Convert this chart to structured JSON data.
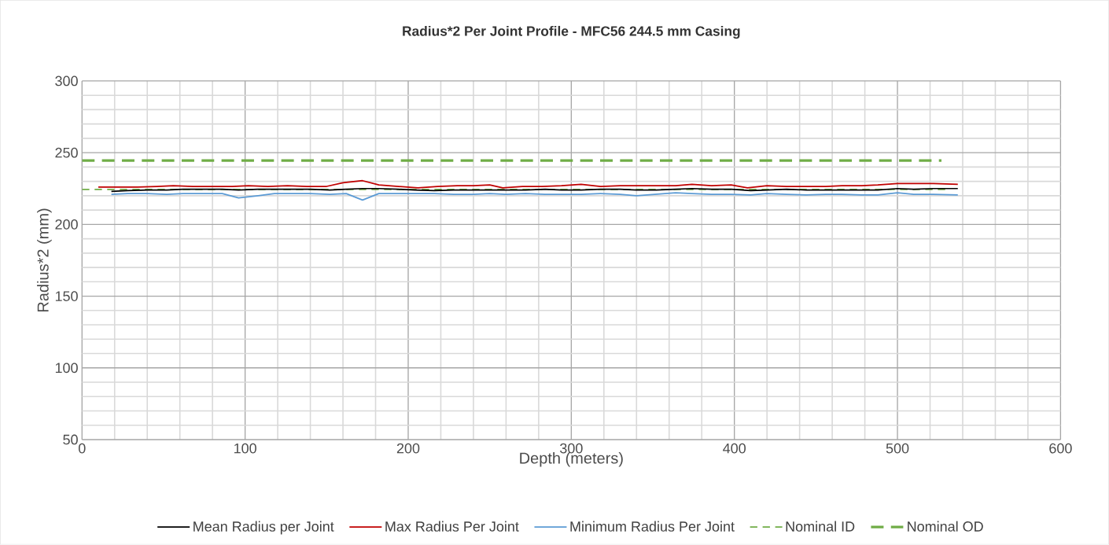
{
  "chart_data": {
    "type": "line",
    "title": "Radius*2 Per Joint Profile - MFC56 244.5 mm Casing",
    "xlabel": "Depth (meters)",
    "ylabel": "Radius*2 (mm)",
    "xlim": [
      0,
      600
    ],
    "xticks": [
      0,
      100,
      200,
      300,
      400,
      500,
      600
    ],
    "ylim": [
      50,
      300
    ],
    "yticks": [
      50,
      100,
      150,
      200,
      250,
      300
    ],
    "grid": true,
    "legend": "bottom",
    "marker": "none",
    "series": [
      {
        "name": "Mean Radius per Joint",
        "color": "#000000",
        "line_style": "solid",
        "x": [
          18,
          28,
          40,
          52,
          62,
          74,
          86,
          96,
          108,
          118,
          128,
          140,
          152,
          162,
          172,
          182,
          194,
          204,
          216,
          228,
          240,
          250,
          260,
          272,
          284,
          294,
          306,
          318,
          330,
          340,
          352,
          364,
          374,
          386,
          398,
          410,
          420,
          432,
          444,
          456,
          466,
          478,
          488,
          500,
          510,
          522,
          537
        ],
        "values": [
          223,
          223.5,
          224,
          224,
          224.5,
          224.5,
          224.5,
          224,
          224.5,
          224.5,
          224.5,
          224.5,
          224,
          224.5,
          225,
          225,
          224.5,
          224,
          223.5,
          224,
          224,
          224,
          224,
          224,
          224.5,
          224,
          224,
          224.5,
          224.5,
          224,
          224,
          224.5,
          225,
          224.5,
          224.5,
          223.5,
          224,
          224.5,
          224,
          224,
          224,
          224,
          224,
          225,
          224.5,
          225,
          225
        ]
      },
      {
        "name": "Max Radius Per Joint",
        "color": "#c00000",
        "line_style": "solid",
        "x": [
          10,
          22,
          34,
          46,
          56,
          68,
          80,
          92,
          102,
          114,
          126,
          138,
          150,
          160,
          172,
          182,
          194,
          206,
          218,
          230,
          240,
          250,
          258,
          270,
          282,
          294,
          306,
          318,
          330,
          342,
          352,
          364,
          374,
          386,
          398,
          408,
          420,
          432,
          444,
          456,
          466,
          478,
          488,
          500,
          510,
          522,
          537
        ],
        "values": [
          226,
          226,
          226,
          226.5,
          227,
          226.5,
          226.5,
          226.5,
          227,
          226.5,
          227,
          226.5,
          226.5,
          229,
          230.5,
          227.5,
          226.5,
          225.5,
          226.5,
          227,
          227,
          227.5,
          225.5,
          226.5,
          226.5,
          227,
          228,
          226.5,
          227,
          227,
          227,
          227,
          228,
          227,
          227.5,
          225.5,
          227,
          226.5,
          226.5,
          226.5,
          227,
          227,
          227.5,
          228.5,
          228.5,
          228.5,
          228
        ]
      },
      {
        "name": "Minimum Radius Per Joint",
        "color": "#5b9bd5",
        "line_style": "solid",
        "x": [
          18,
          28,
          40,
          52,
          62,
          74,
          86,
          96,
          108,
          118,
          128,
          140,
          152,
          162,
          172,
          182,
          194,
          204,
          216,
          228,
          240,
          250,
          260,
          272,
          284,
          294,
          306,
          318,
          330,
          340,
          352,
          364,
          374,
          386,
          398,
          410,
          420,
          432,
          444,
          456,
          466,
          478,
          488,
          500,
          510,
          522,
          537
        ],
        "values": [
          221,
          221.5,
          221.5,
          221,
          221.5,
          221.5,
          221.5,
          218.5,
          220,
          221.5,
          221.5,
          221.5,
          221,
          221.5,
          217,
          221.5,
          221.5,
          221.5,
          221.5,
          221,
          221,
          221.5,
          221,
          221.5,
          221,
          221,
          221,
          221.5,
          221,
          220,
          221,
          222,
          221.5,
          221,
          221,
          220.5,
          221.5,
          221,
          220.5,
          221,
          221,
          220.5,
          220.5,
          222,
          221,
          221,
          220.5
        ]
      },
      {
        "name": "Nominal ID",
        "color": "#70ad47",
        "line_style": "dashed",
        "x": [
          0,
          530
        ],
        "values": [
          224.4,
          224.4
        ]
      },
      {
        "name": "Nominal OD",
        "color": "#70ad47",
        "line_style": "dashed",
        "x": [
          0,
          527
        ],
        "values": [
          244.5,
          244.5
        ]
      }
    ]
  }
}
